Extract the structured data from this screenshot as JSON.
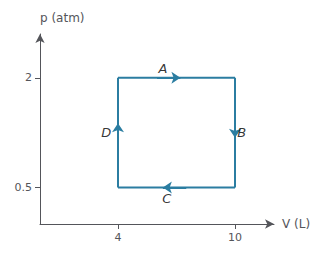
{
  "chart_data": {
    "type": "line",
    "x_label": "V (L)",
    "y_label": "p (atm)",
    "color": "#2b7da1",
    "xlim": [
      0,
      12.0
    ],
    "ylim": [
      0,
      2.6
    ],
    "xticks": [
      4,
      10
    ],
    "yticks": [
      0.5,
      2
    ],
    "grid": false,
    "legend": false,
    "series": [
      {
        "name": "A",
        "x": [
          4,
          10
        ],
        "values": [
          2,
          2
        ],
        "label_xy": [
          6.3,
          2.13
        ],
        "arrow": {
          "from": [
            6.0,
            2
          ],
          "to": [
            7.2,
            2
          ]
        }
      },
      {
        "name": "B",
        "x": [
          10,
          10
        ],
        "values": [
          2,
          0.5
        ],
        "label_xy": [
          10.35,
          1.25
        ],
        "arrow": {
          "from": [
            10,
            1.38
          ],
          "to": [
            10,
            1.18
          ]
        }
      },
      {
        "name": "C",
        "x": [
          10,
          4
        ],
        "values": [
          0.5,
          0.5
        ],
        "label_xy": [
          6.5,
          0.35
        ],
        "arrow": {
          "from": [
            7.5,
            0.5
          ],
          "to": [
            6.3,
            0.5
          ]
        }
      },
      {
        "name": "D",
        "x": [
          4,
          4
        ],
        "values": [
          0.5,
          2
        ],
        "label_xy": [
          3.4,
          1.25
        ],
        "arrow": {
          "from": [
            4,
            1.18
          ],
          "to": [
            4,
            1.38
          ]
        }
      }
    ]
  }
}
